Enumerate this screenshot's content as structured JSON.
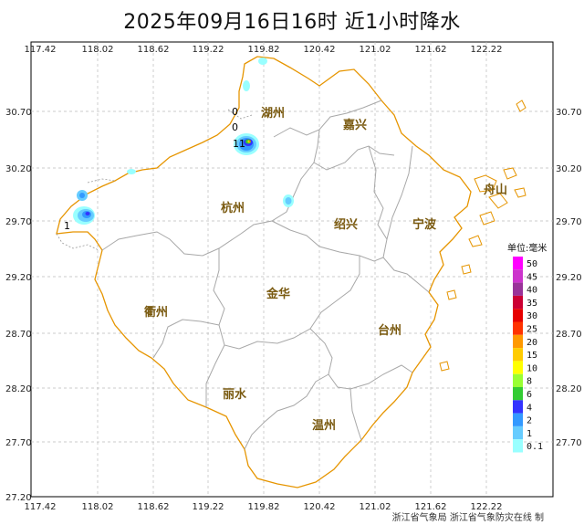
{
  "title": "2025年09月16日16时  近1小时降水",
  "lon_ticks": [
    "117.42",
    "118.02",
    "118.62",
    "119.22",
    "119.82",
    "120.42",
    "121.02",
    "121.62",
    "122.22"
  ],
  "lat_ticks": [
    "30.70",
    "30.20",
    "29.70",
    "29.20",
    "28.70",
    "28.20",
    "27.70",
    "27.20"
  ],
  "cities": {
    "huzhou": "湖州",
    "jiaxing": "嘉兴",
    "hangzhou": "杭州",
    "shaoxing": "绍兴",
    "ningbo": "宁波",
    "zhoushan": "舟山",
    "quzhou": "衢州",
    "jinhua": "金华",
    "taizhou": "台州",
    "lishui": "丽水",
    "wenzhou": "温州"
  },
  "station_values": [
    "0",
    "0",
    "11",
    "1"
  ],
  "legend": {
    "title": "单位:毫米",
    "levels": [
      {
        "label": "50",
        "color": "#ff00ff"
      },
      {
        "label": "45",
        "color": "#cc33cc"
      },
      {
        "label": "40",
        "color": "#993399"
      },
      {
        "label": "35",
        "color": "#cc0033"
      },
      {
        "label": "30",
        "color": "#e60000"
      },
      {
        "label": "25",
        "color": "#ff3300"
      },
      {
        "label": "20",
        "color": "#ff9900"
      },
      {
        "label": "15",
        "color": "#ffcc00"
      },
      {
        "label": "10",
        "color": "#ffff00"
      },
      {
        "label": "8",
        "color": "#99ff33"
      },
      {
        "label": "6",
        "color": "#33cc33"
      },
      {
        "label": "4",
        "color": "#3333ff"
      },
      {
        "label": "2",
        "color": "#3399ff"
      },
      {
        "label": "1",
        "color": "#66ccff"
      },
      {
        "label": "0.1",
        "color": "#99ffff"
      }
    ]
  },
  "credit": "浙江省气象局  浙江省气象防灾在线 制"
}
